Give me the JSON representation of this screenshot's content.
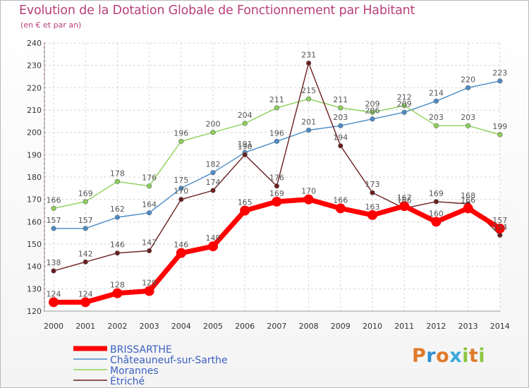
{
  "header": {
    "title": "Evolution de la Dotation Globale de Fonctionnement par Habitant",
    "subtitle": "(en € et par an)"
  },
  "logo": {
    "letters": [
      "P",
      "r",
      "o",
      "x",
      "i",
      "t",
      "i"
    ],
    "colors": [
      "#e07a2a",
      "#2f8fcf",
      "#e07a2a",
      "#3aa7de",
      "#8cc63f",
      "#e07a2a",
      "#8cc63f"
    ]
  },
  "chart_data": {
    "type": "line",
    "title": "Evolution de la Dotation Globale de Fonctionnement par Habitant",
    "subtitle": "(en € et par an)",
    "xlabel": "",
    "ylabel": "",
    "x": [
      "2000",
      "2001",
      "2002",
      "2003",
      "2004",
      "2005",
      "2006",
      "2007",
      "2008",
      "2009",
      "2010",
      "2011",
      "2012",
      "2013",
      "2014"
    ],
    "ylim": [
      120,
      240
    ],
    "yticks": [
      120,
      130,
      140,
      150,
      160,
      170,
      180,
      190,
      200,
      210,
      220,
      230,
      240
    ],
    "grid": true,
    "legend_position": "bottom-left",
    "series": [
      {
        "name": "BRISSARTHE",
        "color": "#ff0000",
        "emphasis": true,
        "values": [
          124,
          124,
          128,
          129,
          146,
          149,
          165,
          169,
          170,
          166,
          163,
          167,
          160,
          166,
          157
        ]
      },
      {
        "name": "Châteauneuf-sur-Sarthe",
        "color": "#4a8bc9",
        "values": [
          157,
          157,
          162,
          164,
          175,
          182,
          191,
          196,
          201,
          203,
          206,
          209,
          214,
          220,
          223
        ]
      },
      {
        "name": "Morannes",
        "color": "#8cd05a",
        "values": [
          166,
          169,
          178,
          176,
          196,
          200,
          204,
          211,
          215,
          211,
          209,
          212,
          203,
          203,
          199
        ]
      },
      {
        "name": "Étriché",
        "color": "#6b1e1e",
        "values": [
          138,
          142,
          146,
          147,
          170,
          174,
          190,
          176,
          231,
          194,
          173,
          166,
          169,
          168,
          154
        ]
      }
    ]
  }
}
